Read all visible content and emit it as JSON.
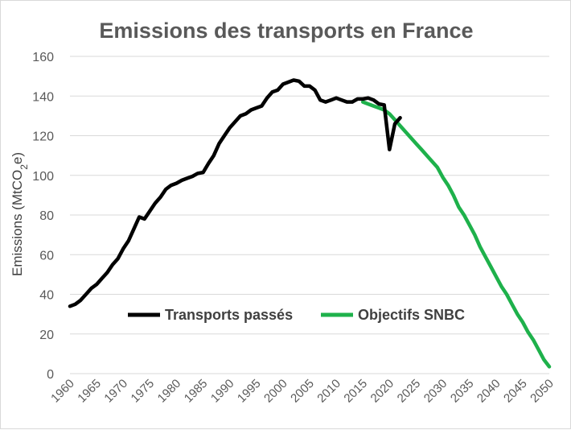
{
  "chart_data": {
    "type": "line",
    "title": "Emissions des transports en France",
    "ylabel_prefix": "Emissions (MtCO",
    "ylabel_sub": "2",
    "ylabel_suffix": "e)",
    "xlabel": "",
    "xlim": [
      1960,
      2050
    ],
    "ylim": [
      0,
      160
    ],
    "yticks": [
      0,
      20,
      40,
      60,
      80,
      100,
      120,
      140,
      160
    ],
    "xticks": [
      1960,
      1965,
      1970,
      1975,
      1980,
      1985,
      1990,
      1995,
      2000,
      2005,
      2010,
      2015,
      2020,
      2025,
      2030,
      2035,
      2040,
      2045,
      2050
    ],
    "grid": true,
    "legend_position": "bottom-center (inside plot)",
    "series": [
      {
        "name": "Transports passés",
        "color": "#000000",
        "x": [
          1960,
          1961,
          1962,
          1963,
          1964,
          1965,
          1966,
          1967,
          1968,
          1969,
          1970,
          1971,
          1972,
          1973,
          1974,
          1975,
          1976,
          1977,
          1978,
          1979,
          1980,
          1981,
          1982,
          1983,
          1984,
          1985,
          1986,
          1987,
          1988,
          1989,
          1990,
          1991,
          1992,
          1993,
          1994,
          1995,
          1996,
          1997,
          1998,
          1999,
          2000,
          2001,
          2002,
          2003,
          2004,
          2005,
          2006,
          2007,
          2008,
          2009,
          2010,
          2011,
          2012,
          2013,
          2014,
          2015,
          2016,
          2017,
          2018,
          2019,
          2020,
          2021,
          2022
        ],
        "y": [
          34,
          35,
          37,
          40,
          43,
          45,
          48,
          51,
          55,
          58,
          63,
          67,
          73,
          79,
          78,
          82,
          86,
          89,
          93,
          95,
          96,
          97.5,
          98.5,
          99.5,
          101,
          101.5,
          106,
          110,
          116,
          120,
          124,
          127,
          130,
          131,
          133,
          134,
          135,
          139,
          142,
          143,
          146,
          147,
          148,
          147.5,
          145,
          145,
          143,
          138,
          137,
          138,
          139,
          138,
          137,
          137,
          138.5,
          138.5,
          139,
          138,
          136,
          135.5,
          113,
          126,
          129
        ]
      },
      {
        "name": "Objectifs SNBC",
        "color": "#1eb14b",
        "x": [
          2015,
          2016,
          2017,
          2018,
          2019,
          2020,
          2021,
          2022,
          2023,
          2024,
          2025,
          2026,
          2027,
          2028,
          2029,
          2030,
          2031,
          2032,
          2033,
          2034,
          2035,
          2036,
          2037,
          2038,
          2039,
          2040,
          2041,
          2042,
          2043,
          2044,
          2045,
          2046,
          2047,
          2048,
          2049,
          2050
        ],
        "y": [
          137,
          136,
          135,
          134,
          133,
          131,
          128,
          125,
          122,
          119,
          116,
          113,
          110,
          107,
          104,
          99,
          95,
          90,
          84,
          80,
          75,
          70,
          64,
          59,
          54,
          49,
          44,
          40,
          35,
          30,
          26,
          21,
          17,
          12,
          7,
          3.5
        ]
      }
    ]
  }
}
